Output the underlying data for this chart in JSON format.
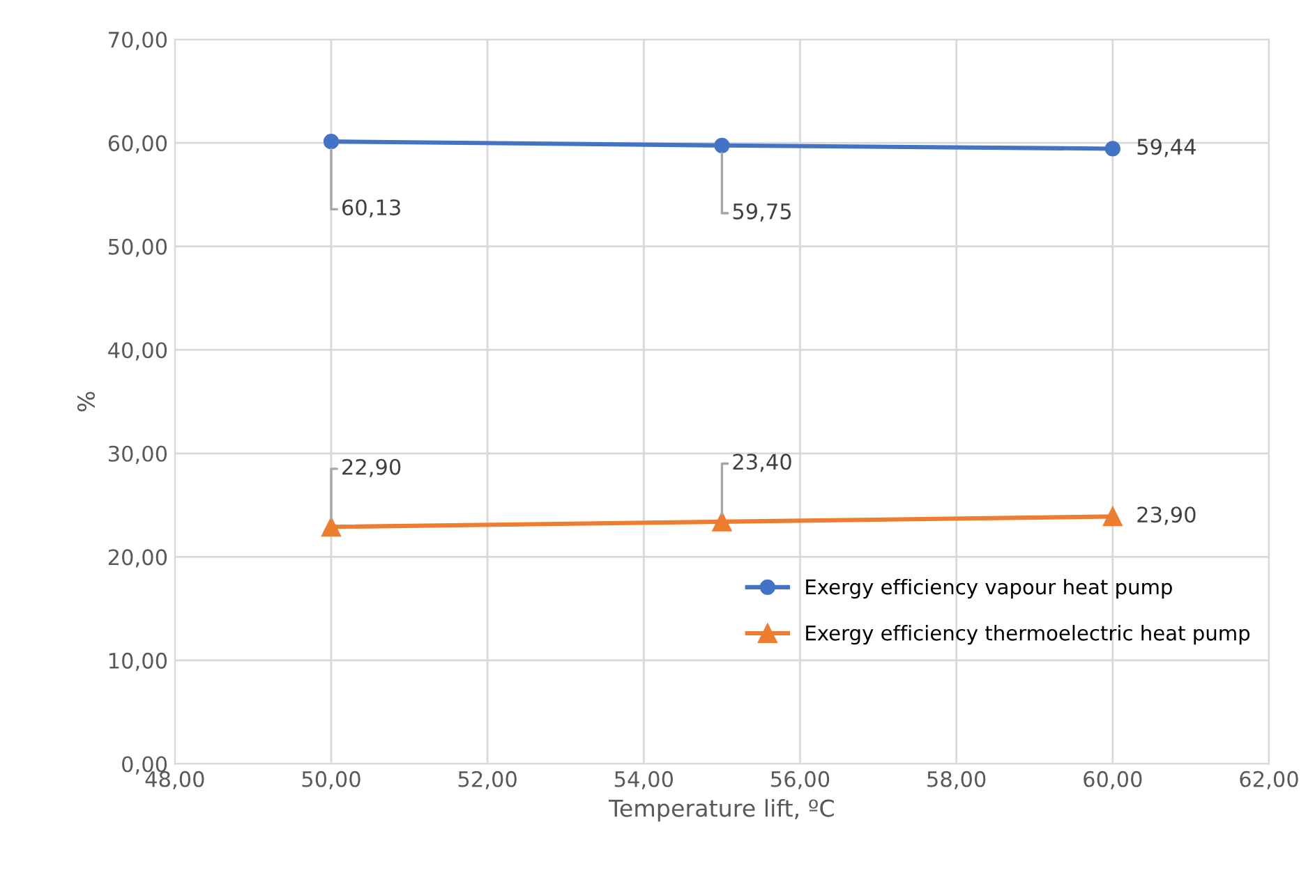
{
  "chart_data": {
    "type": "line",
    "xlabel": "Temperature lift, ºC",
    "ylabel": "%",
    "x": [
      50,
      55,
      60
    ],
    "series": [
      {
        "name": "Exergy efficiency vapour heat pump",
        "color": "#4472c4",
        "values": [
          60.13,
          59.75,
          59.44
        ],
        "marker": "circle",
        "value_labels": [
          "60,13",
          "59,75",
          "59,44"
        ]
      },
      {
        "name": "Exergy efficiency thermoelectric heat pump",
        "color": "#ed7d31",
        "values": [
          22.9,
          23.4,
          23.9
        ],
        "marker": "triangle",
        "value_labels": [
          "22,90",
          "23,40",
          "23,90"
        ]
      }
    ],
    "xlim": [
      48,
      62
    ],
    "xticks": [
      {
        "value": 48,
        "label": "48,00"
      },
      {
        "value": 50,
        "label": "50,00"
      },
      {
        "value": 52,
        "label": "52,00"
      },
      {
        "value": 54,
        "label": "54,00"
      },
      {
        "value": 56,
        "label": "56,00"
      },
      {
        "value": 58,
        "label": "58,00"
      },
      {
        "value": 60,
        "label": "60,00"
      },
      {
        "value": 62,
        "label": "62,00"
      }
    ],
    "ylim": [
      0,
      70
    ],
    "yticks": [
      {
        "value": 0,
        "label": "0,00"
      },
      {
        "value": 10,
        "label": "10,00"
      },
      {
        "value": 20,
        "label": "20,00"
      },
      {
        "value": 30,
        "label": "30,00"
      },
      {
        "value": 40,
        "label": "40,00"
      },
      {
        "value": 50,
        "label": "50,00"
      },
      {
        "value": 60,
        "label": "60,00"
      },
      {
        "value": 70,
        "label": "70,00"
      }
    ],
    "grid": true,
    "legend": "right",
    "line_style": "solid"
  }
}
